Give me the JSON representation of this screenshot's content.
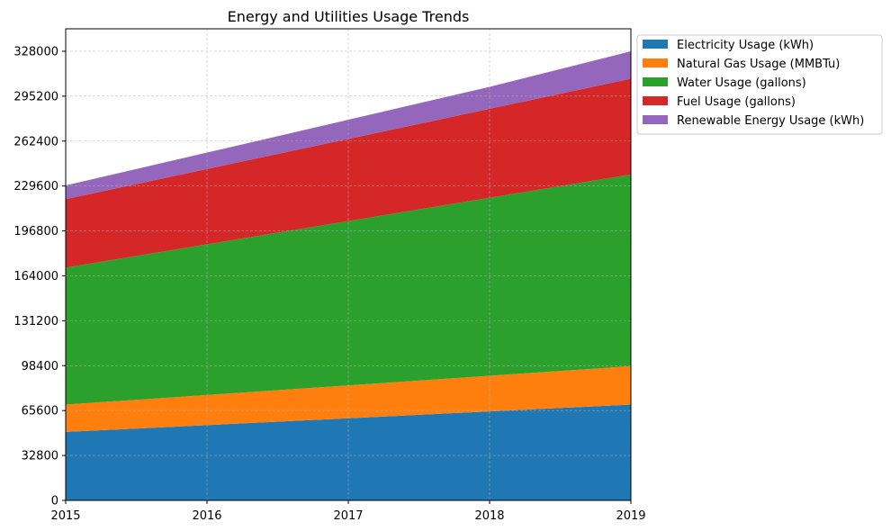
{
  "chart_data": {
    "type": "area",
    "stacked": true,
    "title": "Energy and Utilities Usage Trends",
    "xlabel": "",
    "ylabel": "",
    "x": [
      2015,
      2016,
      2017,
      2018,
      2019
    ],
    "x_tick_labels": [
      "2015",
      "2016",
      "2017",
      "2018",
      "2019"
    ],
    "y_ticks": [
      0,
      32800,
      65600,
      98400,
      131200,
      164000,
      196800,
      229600,
      262400,
      295200,
      328000
    ],
    "y_tick_labels": [
      "0",
      "32800",
      "65600",
      "98400",
      "131200",
      "164000",
      "196800",
      "229600",
      "262400",
      "295200",
      "328000"
    ],
    "xlim": [
      2015,
      2019
    ],
    "ylim": [
      0,
      344400
    ],
    "grid": true,
    "legend_position": "outside-top-right",
    "series": [
      {
        "name": "Electricity Usage (kWh)",
        "color": "#1f77b4",
        "values": [
          50000,
          55000,
          60000,
          65000,
          70000
        ]
      },
      {
        "name": "Natural Gas Usage (MMBTu)",
        "color": "#ff7f0e",
        "values": [
          20000,
          22000,
          24000,
          26000,
          28000
        ]
      },
      {
        "name": "Water Usage (gallons)",
        "color": "#2ca02c",
        "values": [
          100000,
          110000,
          120000,
          130000,
          140000
        ]
      },
      {
        "name": "Fuel Usage (gallons)",
        "color": "#d62728",
        "values": [
          50000,
          55000,
          60000,
          65000,
          70000
        ]
      },
      {
        "name": "Renewable Energy Usage (kWh)",
        "color": "#9467bd",
        "values": [
          10000,
          12000,
          14000,
          16000,
          20000
        ]
      }
    ]
  }
}
